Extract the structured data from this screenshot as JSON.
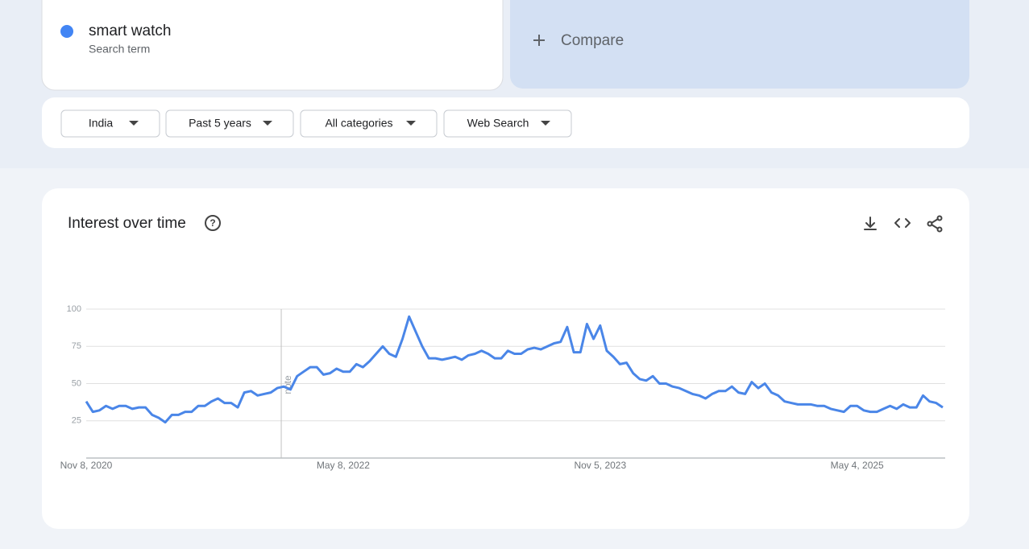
{
  "search_term": {
    "name": "smart watch",
    "label": "Search term"
  },
  "compare": "Compare",
  "filters": [
    "India",
    "Past 5 years",
    "All categories",
    "Web Search"
  ],
  "card_title": "Interest over time",
  "chart_data": {
    "type": "line",
    "color": "#4a86e8",
    "annotation": "note",
    "grid": true,
    "ylim": [
      0,
      100
    ],
    "yticks": [
      25,
      50,
      75,
      100
    ],
    "categories": [
      "Nov 8, 2020",
      null,
      null,
      null,
      null,
      null,
      null,
      null,
      null,
      null,
      null,
      null,
      null,
      null,
      null,
      null,
      null,
      null,
      null,
      null,
      null,
      null,
      null,
      null,
      null,
      null,
      null,
      null,
      null,
      null,
      null,
      null,
      null,
      null,
      null,
      null,
      null,
      null,
      null,
      "May 8, 2022",
      null,
      null,
      null,
      null,
      null,
      null,
      null,
      null,
      null,
      null,
      null,
      null,
      null,
      null,
      null,
      null,
      null,
      null,
      null,
      null,
      null,
      null,
      null,
      null,
      null,
      null,
      null,
      null,
      null,
      null,
      null,
      null,
      null,
      null,
      null,
      null,
      null,
      null,
      "Nov 5, 2023",
      null,
      null,
      null,
      null,
      null,
      null,
      null,
      null,
      null,
      null,
      null,
      null,
      null,
      null,
      null,
      null,
      null,
      null,
      null,
      null,
      null,
      null,
      null,
      null,
      null,
      null,
      null,
      null,
      null,
      null,
      null,
      null,
      null,
      null,
      null,
      null,
      null,
      null,
      "May 4, 2025",
      null,
      null,
      null,
      null,
      null,
      null,
      null,
      null,
      null,
      null,
      null,
      null,
      null
    ],
    "values": [
      38,
      31,
      32,
      35,
      33,
      35,
      35,
      33,
      34,
      34,
      29,
      27,
      24,
      29,
      29,
      31,
      31,
      35,
      35,
      38,
      40,
      37,
      37,
      34,
      44,
      45,
      42,
      43,
      44,
      47,
      48,
      46,
      55,
      58,
      61,
      61,
      56,
      57,
      60,
      58,
      58,
      63,
      61,
      65,
      70,
      75,
      70,
      68,
      80,
      95,
      85,
      75,
      67,
      67,
      66,
      67,
      68,
      66,
      69,
      70,
      72,
      70,
      67,
      67,
      72,
      70,
      70,
      73,
      74,
      73,
      75,
      77,
      78,
      88,
      71,
      71,
      90,
      80,
      89,
      72,
      68,
      63,
      64,
      57,
      53,
      52,
      55,
      50,
      50,
      48,
      47,
      45,
      43,
      42,
      40,
      43,
      45,
      45,
      48,
      44,
      43,
      51,
      47,
      50,
      44,
      42,
      38,
      37,
      36,
      36,
      36,
      35,
      35,
      33,
      32,
      31,
      35,
      35,
      32,
      31,
      31,
      33,
      35,
      33,
      36,
      34,
      34,
      42,
      38,
      37,
      34
    ]
  }
}
